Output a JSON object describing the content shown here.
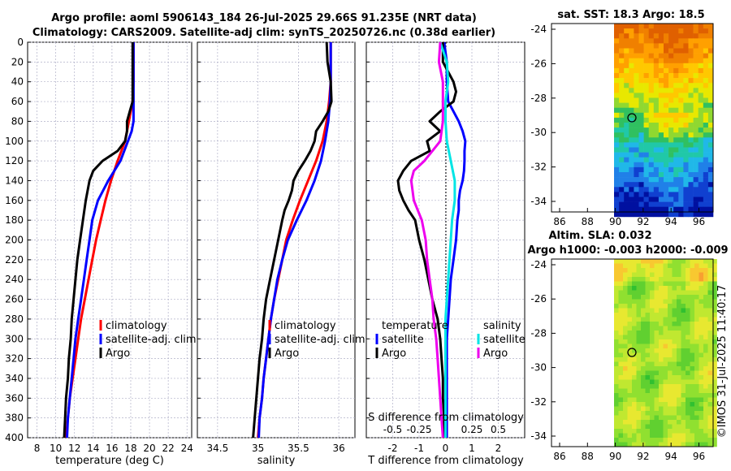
{
  "header": {
    "line1": "Argo profile: aoml 5906143_184 26-Jul-2025 29.66S 91.235E (NRT data)",
    "line2": "Climatology: CARS2009. Satellite-adj clim: synTS_20250726.nc (0.38d earlier)"
  },
  "colors": {
    "climatology": "#ff0000",
    "satellite": "#0000ff",
    "argo": "#000000",
    "sat_salinity": "#00e5e5",
    "argo_salinity": "#ee00ee"
  },
  "chart_data": [
    {
      "type": "line",
      "id": "temperature",
      "xlabel": "temperature (deg C)",
      "ylabel": "depth (dbar)",
      "xlim": [
        7,
        24.5
      ],
      "ylim": [
        400,
        0
      ],
      "xticks": [
        8,
        10,
        12,
        14,
        16,
        18,
        20,
        22,
        24
      ],
      "yticks": [
        0,
        20,
        40,
        60,
        80,
        100,
        120,
        140,
        160,
        180,
        200,
        220,
        240,
        260,
        280,
        300,
        320,
        340,
        360,
        380,
        400
      ],
      "legend": [
        "climatology",
        "satellite-adj. clim",
        "Argo"
      ],
      "series": [
        {
          "name": "climatology",
          "color": "#ff0000",
          "depth": [
            0,
            40,
            60,
            80,
            100,
            120,
            140,
            160,
            180,
            200,
            220,
            240,
            260,
            280,
            300,
            320,
            340,
            360,
            380,
            400
          ],
          "values": [
            18.3,
            18.3,
            18.2,
            17.8,
            17.4,
            16.6,
            15.9,
            15.3,
            14.8,
            14.3,
            13.9,
            13.5,
            13.1,
            12.7,
            12.4,
            12.1,
            11.8,
            11.5,
            11.3,
            11.1
          ]
        },
        {
          "name": "satellite-adj. clim",
          "color": "#0000ff",
          "depth": [
            0,
            40,
            60,
            80,
            90,
            100,
            120,
            140,
            160,
            180,
            200,
            220,
            240,
            260,
            280,
            300,
            320,
            340,
            360,
            380,
            400
          ],
          "values": [
            18.3,
            18.3,
            18.3,
            18.3,
            18.1,
            17.7,
            16.9,
            15.6,
            14.5,
            13.9,
            13.6,
            13.3,
            13.0,
            12.7,
            12.4,
            12.1,
            11.9,
            11.7,
            11.5,
            11.3,
            11.2
          ]
        },
        {
          "name": "Argo",
          "color": "#000000",
          "depth": [
            0,
            40,
            60,
            70,
            80,
            90,
            100,
            110,
            120,
            130,
            140,
            150,
            160,
            180,
            200,
            220,
            240,
            260,
            280,
            300,
            320,
            340,
            360,
            380,
            400
          ],
          "values": [
            18.2,
            18.2,
            18.2,
            17.9,
            17.6,
            17.6,
            17.4,
            16.6,
            15.0,
            14.0,
            13.6,
            13.4,
            13.2,
            12.9,
            12.6,
            12.3,
            12.1,
            11.9,
            11.7,
            11.6,
            11.4,
            11.3,
            11.1,
            11.0,
            10.9
          ]
        }
      ]
    },
    {
      "type": "line",
      "id": "salinity",
      "xlabel": "salinity",
      "xlim": [
        34.25,
        36.2
      ],
      "ylim": [
        400,
        0
      ],
      "xticks": [
        34.5,
        35,
        35.5,
        36
      ],
      "legend": [
        "climatology",
        "satellite-adj. clim",
        "Argo"
      ],
      "series": [
        {
          "name": "climatology",
          "color": "#ff0000",
          "depth": [
            0,
            40,
            60,
            80,
            100,
            120,
            140,
            160,
            180,
            200,
            220,
            240,
            260,
            280,
            300,
            320,
            340,
            360,
            380,
            400
          ],
          "values": [
            35.9,
            35.9,
            35.88,
            35.85,
            35.8,
            35.72,
            35.62,
            35.52,
            35.43,
            35.35,
            35.3,
            35.25,
            35.2,
            35.16,
            35.13,
            35.1,
            35.07,
            35.05,
            35.02,
            35.0
          ]
        },
        {
          "name": "satellite-adj. clim",
          "color": "#0000ff",
          "depth": [
            0,
            20,
            40,
            60,
            80,
            100,
            120,
            140,
            160,
            180,
            200,
            220,
            240,
            260,
            280,
            300,
            320,
            340,
            360,
            380,
            400
          ],
          "values": [
            35.9,
            35.9,
            35.9,
            35.89,
            35.87,
            35.83,
            35.78,
            35.7,
            35.6,
            35.48,
            35.37,
            35.3,
            35.24,
            35.2,
            35.16,
            35.13,
            35.1,
            35.07,
            35.05,
            35.02,
            35.01
          ]
        },
        {
          "name": "Argo",
          "color": "#000000",
          "depth": [
            0,
            20,
            40,
            60,
            70,
            80,
            90,
            100,
            110,
            120,
            130,
            140,
            150,
            160,
            170,
            180,
            200,
            220,
            240,
            260,
            280,
            300,
            320,
            340,
            360,
            380,
            400
          ],
          "values": [
            35.85,
            35.86,
            35.9,
            35.91,
            35.87,
            35.8,
            35.72,
            35.7,
            35.65,
            35.58,
            35.5,
            35.44,
            35.42,
            35.38,
            35.33,
            35.3,
            35.25,
            35.2,
            35.15,
            35.1,
            35.07,
            35.05,
            35.02,
            35.0,
            34.98,
            34.96,
            34.94
          ]
        }
      ]
    },
    {
      "type": "line",
      "id": "difference",
      "xlabel": "T difference from climatology",
      "xlabel_top": "S difference from climatology",
      "xlim": [
        -3,
        3
      ],
      "ylim": [
        400,
        0
      ],
      "xticks": [
        -2,
        -1,
        0,
        1,
        2
      ],
      "xticks_top": [
        "-0.5",
        "-0.25",
        "0",
        "0.25",
        "0.5"
      ],
      "legend": [
        "temperature",
        "satellite",
        "Argo",
        "salinity",
        "satellite",
        "Argo"
      ],
      "series": [
        {
          "name": "temperature satellite",
          "color": "#0000ff",
          "depth": [
            0,
            20,
            40,
            60,
            70,
            80,
            90,
            100,
            110,
            120,
            130,
            140,
            150,
            160,
            170,
            180,
            200,
            220,
            240,
            260,
            280,
            300,
            320,
            340,
            360,
            380,
            400
          ],
          "values": [
            -0.05,
            0.05,
            0.05,
            0.1,
            0.3,
            0.5,
            0.65,
            0.75,
            0.72,
            0.72,
            0.7,
            0.65,
            0.55,
            0.5,
            0.5,
            0.45,
            0.4,
            0.3,
            0.2,
            0.15,
            0.1,
            0.05,
            0.05,
            0.05,
            0.05,
            0.05,
            0.05
          ]
        },
        {
          "name": "temperature Argo",
          "color": "#000000",
          "depth": [
            0,
            20,
            40,
            50,
            60,
            70,
            80,
            90,
            100,
            110,
            120,
            130,
            140,
            150,
            160,
            170,
            180,
            200,
            220,
            240,
            260,
            280,
            300,
            320,
            340,
            360,
            380,
            400
          ],
          "values": [
            -0.1,
            -0.1,
            0.3,
            0.4,
            0.3,
            -0.2,
            -0.6,
            -0.2,
            -0.7,
            -0.6,
            -1.3,
            -1.6,
            -1.8,
            -1.75,
            -1.6,
            -1.4,
            -1.15,
            -1.0,
            -0.8,
            -0.65,
            -0.5,
            -0.3,
            -0.2,
            -0.15,
            -0.1,
            -0.1,
            -0.05,
            -0.05
          ]
        },
        {
          "name": "salinity satellite",
          "color": "#00e5e5",
          "depth": [
            0,
            20,
            40,
            60,
            80,
            100,
            120,
            140,
            160,
            180,
            200,
            220,
            240,
            260,
            280,
            300,
            320,
            340,
            360,
            380,
            400
          ],
          "values": [
            -0.2,
            0.05,
            0.1,
            0.0,
            0.0,
            0.05,
            0.2,
            0.35,
            0.35,
            0.25,
            0.2,
            0.15,
            0.1,
            0.05,
            0.0,
            0.0,
            0.0,
            0.0,
            0.0,
            0.0,
            0.0
          ]
        },
        {
          "name": "salinity Argo",
          "color": "#ee00ee",
          "depth": [
            0,
            20,
            40,
            60,
            80,
            100,
            110,
            120,
            130,
            140,
            150,
            160,
            170,
            180,
            200,
            220,
            240,
            260,
            280,
            300,
            320,
            340,
            360,
            380,
            400
          ],
          "values": [
            -0.2,
            -0.25,
            -0.1,
            -0.1,
            -0.1,
            -0.2,
            -0.5,
            -0.8,
            -1.2,
            -1.3,
            -1.25,
            -1.2,
            -1.05,
            -0.9,
            -0.75,
            -0.7,
            -0.6,
            -0.5,
            -0.45,
            -0.35,
            -0.3,
            -0.25,
            -0.2,
            -0.15,
            -0.1
          ]
        }
      ]
    }
  ],
  "sst_map": {
    "title": "sat. SST: 18.3 Argo: 18.5",
    "yticks": [
      "-24",
      "-26",
      "-28",
      "-30",
      "-32",
      "-34"
    ],
    "xticks": [
      "86",
      "88",
      "90",
      "92",
      "94",
      "96"
    ]
  },
  "sla_map": {
    "title1": "Altim. SLA: 0.032",
    "title2": "Argo h1000: -0.003 h2000: -0.009",
    "yticks": [
      "-24",
      "-26",
      "-28",
      "-30",
      "-32",
      "-34"
    ],
    "xticks": [
      "86",
      "88",
      "90",
      "92",
      "94",
      "96"
    ]
  },
  "credit": "©IMOS 31-Jul-2025 11:40:17"
}
